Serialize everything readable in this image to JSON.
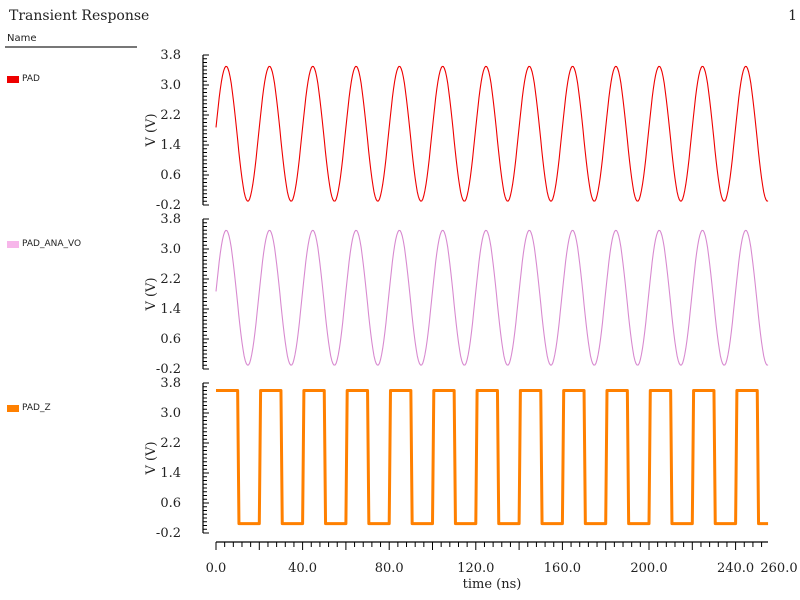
{
  "header": {
    "title": "Transient Response",
    "page_number": "1"
  },
  "legend": {
    "column_header": "Name",
    "items": [
      {
        "label": "PAD",
        "color": "#ee0000"
      },
      {
        "label": "PAD_ANA_VO",
        "color": "#f7b6ea"
      },
      {
        "label": "PAD_Z",
        "color": "#ff8000"
      }
    ]
  },
  "chart_data": {
    "type": "line",
    "title": "Transient Response",
    "xlabel": "time (ns)",
    "x_ticks": [
      "0.0",
      "40.0",
      "80.0",
      "120.0",
      "160.0",
      "200.0",
      "240.0",
      "260.0"
    ],
    "xlim": [
      0,
      255
    ],
    "grid": false,
    "legend_position": "left",
    "panels": [
      {
        "name": "PAD",
        "ylabel": "V (V)",
        "ylim": [
          -0.2,
          3.8
        ],
        "y_ticks": [
          "3.8",
          "3.0",
          "2.2",
          "1.4",
          "0.6",
          "-0.2"
        ],
        "color": "#ee0000",
        "waveform": {
          "shape": "sine",
          "offset": 1.7,
          "amplitude": 1.8,
          "period_ns": 20,
          "start_value": 1.75,
          "peaks": 13
        }
      },
      {
        "name": "PAD_ANA_VO",
        "ylabel": "V (V)",
        "ylim": [
          -0.2,
          3.8
        ],
        "y_ticks": [
          "3.8",
          "3.0",
          "2.2",
          "1.4",
          "0.6",
          "-0.2"
        ],
        "color": "#d88ad0",
        "waveform": {
          "shape": "sine",
          "offset": 1.7,
          "amplitude": 1.8,
          "period_ns": 20,
          "start_value": 1.75
        }
      },
      {
        "name": "PAD_Z",
        "ylabel": "V (V)",
        "ylim": [
          -0.2,
          3.8
        ],
        "y_ticks": [
          "3.8",
          "3.0",
          "2.2",
          "1.4",
          "0.6",
          "-0.2"
        ],
        "color": "#ff8000",
        "waveform": {
          "shape": "square",
          "high": 3.6,
          "low": 0.05,
          "period_ns": 20,
          "initial": "high",
          "first_fall_ns": 10
        }
      }
    ]
  }
}
